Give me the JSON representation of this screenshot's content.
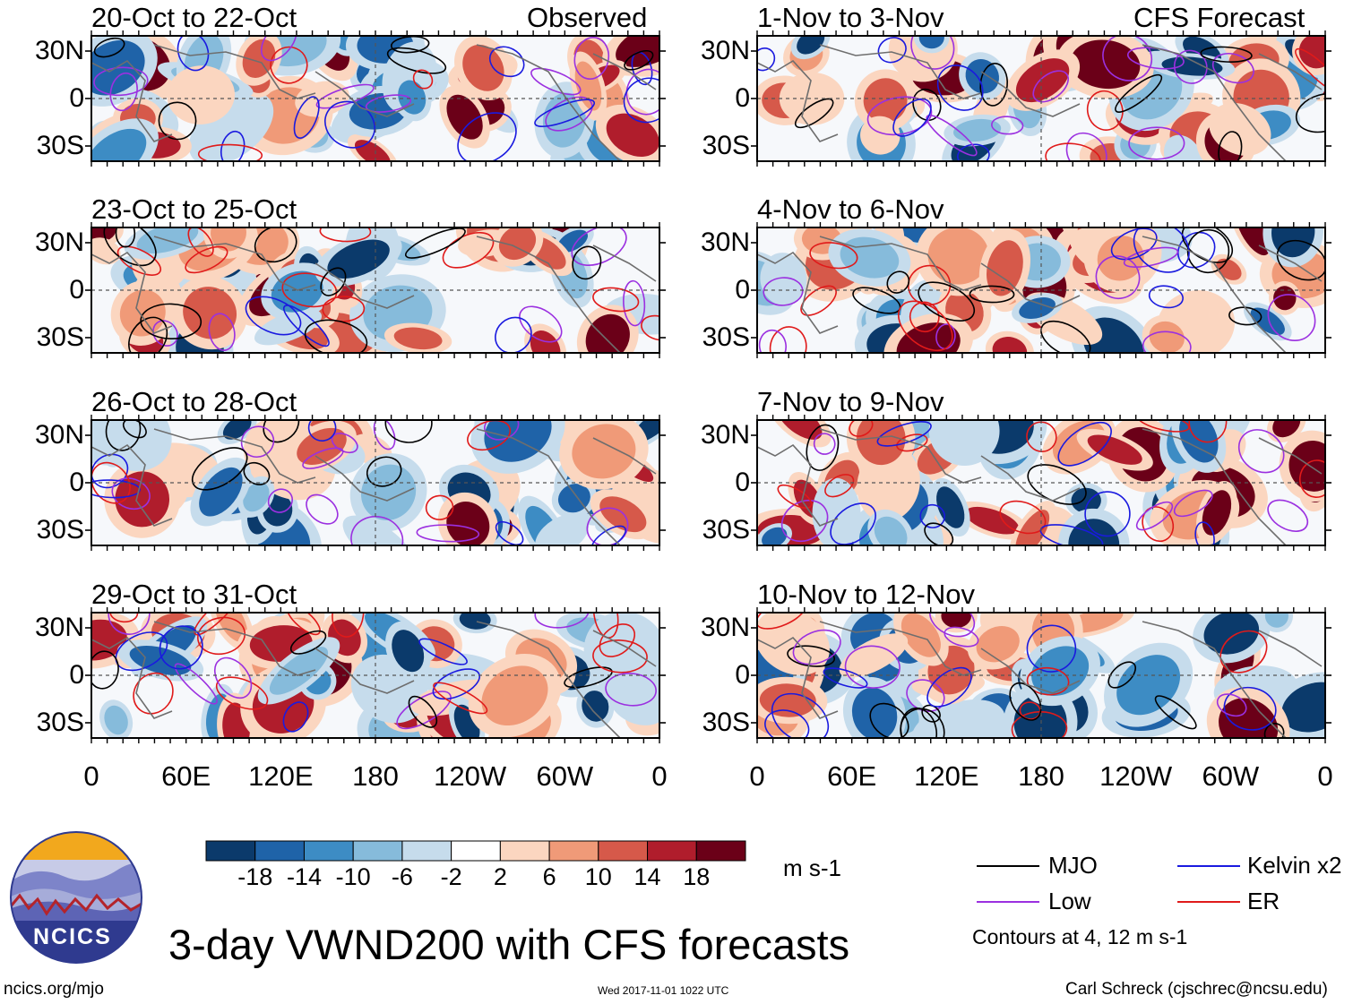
{
  "title": "3-day VWND200 with CFS forecasts",
  "observed_label": "Observed",
  "forecast_label": "CFS Forecast",
  "units": "m s-1",
  "legend": {
    "items": [
      {
        "label": "MJO",
        "color": "#000000"
      },
      {
        "label": "Low",
        "color": "#9b30e0"
      },
      {
        "label": "Kelvin x2",
        "color": "#1a1adf"
      },
      {
        "label": "ER",
        "color": "#e01a1a"
      }
    ],
    "note": "Contours at 4, 12 m s-1"
  },
  "footer": {
    "left": "ncics.org/mjo",
    "center": "Wed 2017-11-01 1022 UTC",
    "right": "Carl Schreck (cjschrec@ncsu.edu)",
    "logo_text": "NCICS"
  },
  "chart_data": {
    "type": "heatmap",
    "variable": "VWND200",
    "lat_ticks": [
      "30N",
      "0",
      "30S"
    ],
    "lon_ticks": [
      "0",
      "60E",
      "120E",
      "180",
      "120W",
      "60W",
      "0"
    ],
    "lat_range": [
      -40,
      40
    ],
    "lon_range": [
      0,
      360
    ],
    "panels": [
      {
        "title": "20-Oct to 22-Oct",
        "column": "observed",
        "row": 0
      },
      {
        "title": "23-Oct to 25-Oct",
        "column": "observed",
        "row": 1
      },
      {
        "title": "26-Oct to 28-Oct",
        "column": "observed",
        "row": 2
      },
      {
        "title": "29-Oct to 31-Oct",
        "column": "observed",
        "row": 3
      },
      {
        "title": "1-Nov to 3-Nov",
        "column": "forecast",
        "row": 0
      },
      {
        "title": "4-Nov to 6-Nov",
        "column": "forecast",
        "row": 1
      },
      {
        "title": "7-Nov to 9-Nov",
        "column": "forecast",
        "row": 2
      },
      {
        "title": "10-Nov to 12-Nov",
        "column": "forecast",
        "row": 3
      }
    ],
    "colorbar": {
      "labels": [
        "-18",
        "-14",
        "-10",
        "-6",
        "-2",
        "2",
        "6",
        "10",
        "14",
        "18"
      ],
      "colors": [
        "#0b3a6b",
        "#1f63a8",
        "#3d8cc4",
        "#86bbdb",
        "#c6dcec",
        "#ffffff",
        "#fbd6c0",
        "#f09a78",
        "#d6594a",
        "#b01d2c",
        "#6b0018"
      ]
    },
    "contour_levels": [
      4,
      12
    ]
  }
}
